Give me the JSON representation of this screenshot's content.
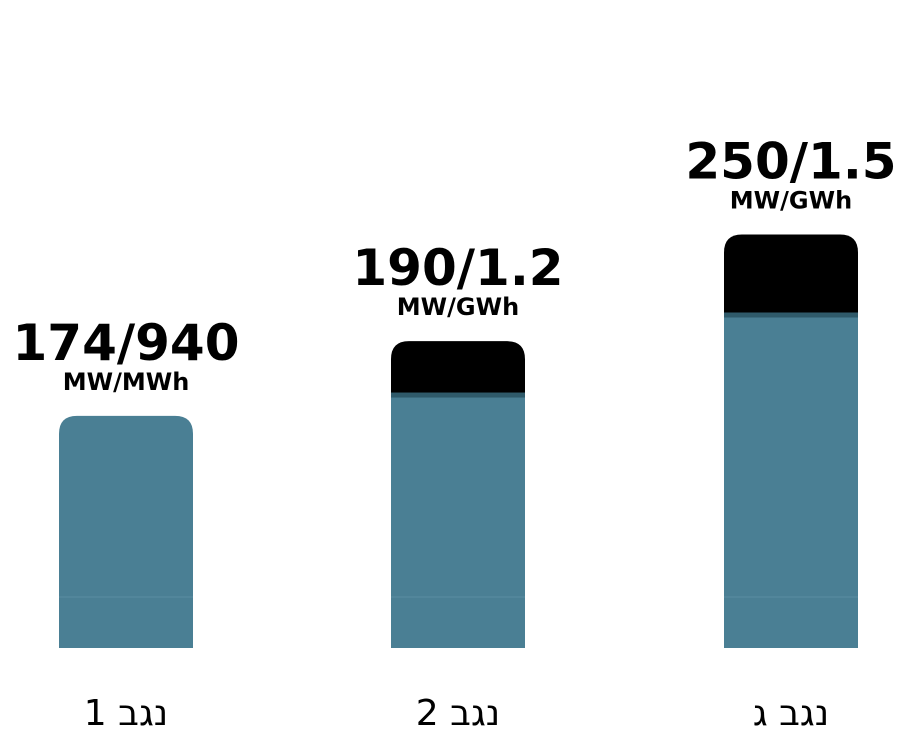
{
  "chart_data": {
    "type": "bar",
    "stacked": true,
    "categories": [
      "נגב 1",
      "נגב 2",
      "נגב ג"
    ],
    "series": [
      {
        "values": [
          174,
          190,
          250
        ]
      },
      {
        "values": [
          0,
          40,
          60
        ]
      }
    ],
    "value_labels": [
      "174/940",
      "190/1.2",
      "250/1.5"
    ],
    "unit_labels": [
      "MW/MWh",
      "MW/GWh",
      "MW/GWh"
    ],
    "colors": {
      "base": "#4a7f94",
      "top": "#000000",
      "divider": "#2f5a6a"
    },
    "grid": false,
    "legend": "none"
  }
}
